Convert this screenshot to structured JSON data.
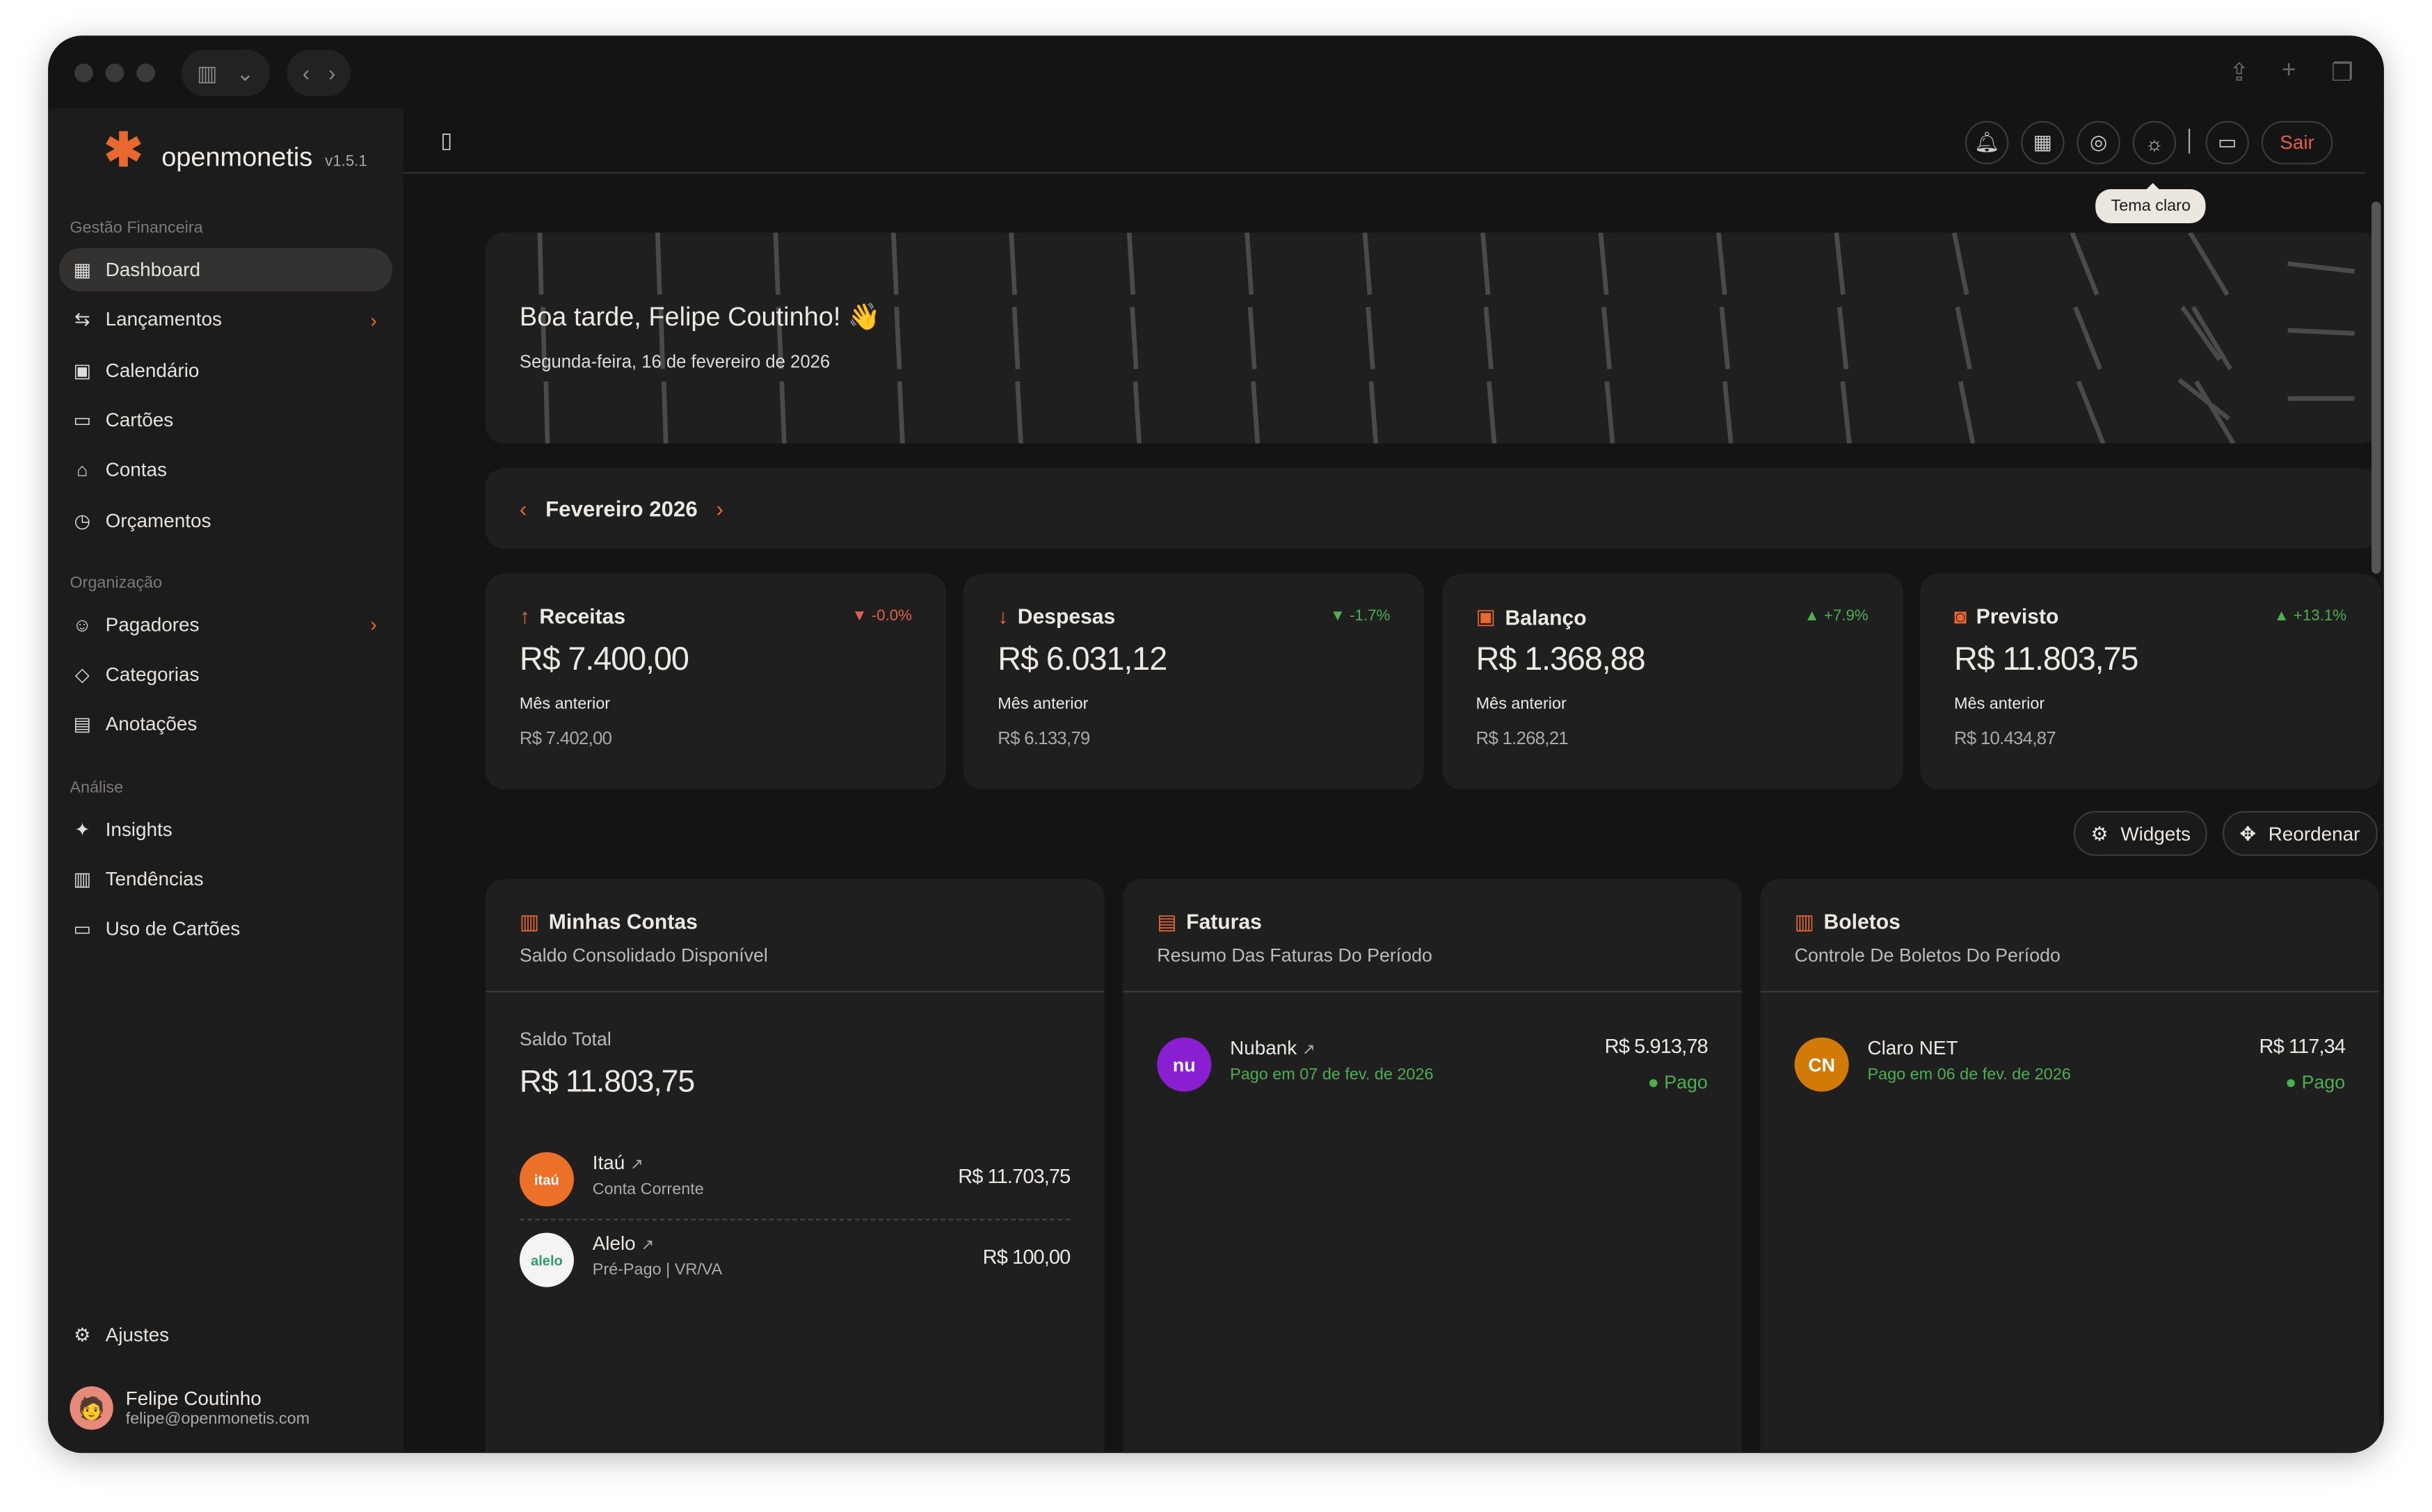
{
  "app": {
    "name": "openmonetis",
    "version": "v1.5.1"
  },
  "colors": {
    "accent": "#e8692f",
    "positive": "#4caf50",
    "negative": "#e0604a"
  },
  "sidebar": {
    "sections": [
      {
        "title": "Gestão Financeira",
        "items": [
          {
            "label": "Dashboard",
            "icon": "dashboard-icon",
            "active": true
          },
          {
            "label": "Lançamentos",
            "icon": "transfer-icon",
            "chevron": true
          },
          {
            "label": "Calendário",
            "icon": "calendar-icon"
          },
          {
            "label": "Cartões",
            "icon": "card-icon"
          },
          {
            "label": "Contas",
            "icon": "bank-icon"
          },
          {
            "label": "Orçamentos",
            "icon": "budget-icon"
          }
        ]
      },
      {
        "title": "Organização",
        "items": [
          {
            "label": "Pagadores",
            "icon": "user-icon",
            "chevron": true
          },
          {
            "label": "Categorias",
            "icon": "tag-icon"
          },
          {
            "label": "Anotações",
            "icon": "notes-icon"
          }
        ]
      },
      {
        "title": "Análise",
        "items": [
          {
            "label": "Insights",
            "icon": "sparkle-icon"
          },
          {
            "label": "Tendências",
            "icon": "chart-icon"
          },
          {
            "label": "Uso de Cartões",
            "icon": "card-icon"
          }
        ]
      }
    ],
    "settings": "Ajustes",
    "user": {
      "name": "Felipe Coutinho",
      "email": "felipe@openmonetis.com"
    }
  },
  "topbar": {
    "logout": "Sair",
    "tooltip": "Tema claro"
  },
  "hero": {
    "greeting": "Boa tarde, Felipe Coutinho! 👋",
    "date": "Segunda-feira, 16 de fevereiro de 2026"
  },
  "period": {
    "label": "Fevereiro 2026"
  },
  "stats": [
    {
      "title": "Receitas",
      "icon": "↑",
      "change": "-0.0%",
      "trend": "down",
      "trend_color": "#e0604a",
      "value": "R$ 7.400,00",
      "prev_label": "Mês anterior",
      "prev": "R$ 7.402,00"
    },
    {
      "title": "Despesas",
      "icon": "↓",
      "change": "-1.7%",
      "trend": "down",
      "trend_color": "#4caf50",
      "value": "R$ 6.031,12",
      "prev_label": "Mês anterior",
      "prev": "R$ 6.133,79"
    },
    {
      "title": "Balanço",
      "icon": "▣",
      "change": "+7.9%",
      "trend": "up",
      "trend_color": "#4caf50",
      "value": "R$ 1.368,88",
      "prev_label": "Mês anterior",
      "prev": "R$ 1.268,21"
    },
    {
      "title": "Previsto",
      "icon": "◙",
      "change": "+13.1%",
      "trend": "up",
      "trend_color": "#4caf50",
      "value": "R$ 11.803,75",
      "prev_label": "Mês anterior",
      "prev": "R$ 10.434,87"
    }
  ],
  "actions": {
    "widgets": "Widgets",
    "reorder": "Reordenar"
  },
  "widgets": {
    "accounts": {
      "title": "Minhas Contas",
      "subtitle": "Saldo Consolidado Disponível",
      "total_label": "Saldo Total",
      "total": "R$ 11.803,75",
      "items": [
        {
          "name": "Itaú",
          "type": "Conta Corrente",
          "amount": "R$ 11.703,75",
          "logo": "itaú"
        },
        {
          "name": "Alelo",
          "type": "Pré-Pago | VR/VA",
          "amount": "R$ 100,00",
          "logo": "alelo"
        }
      ]
    },
    "invoices": {
      "title": "Faturas",
      "subtitle": "Resumo Das Faturas Do Período",
      "items": [
        {
          "name": "Nubank",
          "note": "Pago em 07 de fev. de 2026",
          "amount": "R$ 5.913,78",
          "status": "Pago",
          "logo": "nu"
        }
      ]
    },
    "bills": {
      "title": "Boletos",
      "subtitle": "Controle De Boletos Do Período",
      "items": [
        {
          "name": "Claro NET",
          "note": "Pago em 06 de fev. de 2026",
          "amount": "R$ 117,34",
          "status": "Pago",
          "logo": "CN"
        }
      ]
    }
  }
}
